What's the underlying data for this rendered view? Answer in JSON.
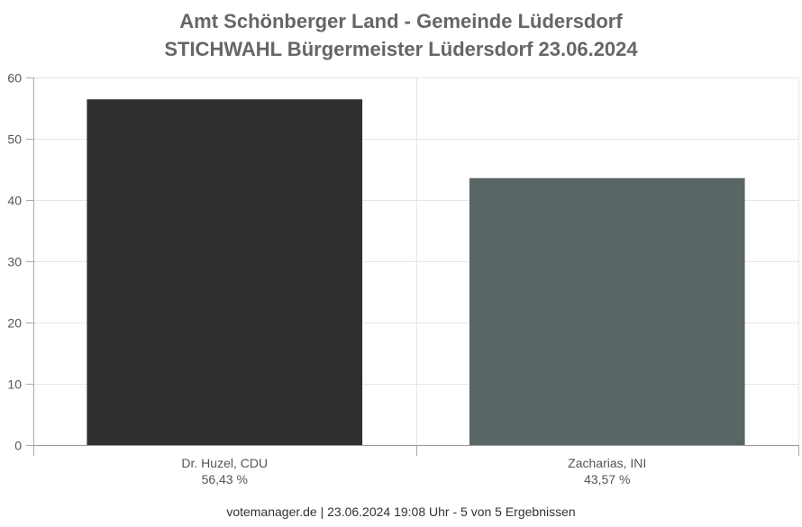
{
  "chart_data": {
    "type": "bar",
    "title_line1": "Amt Schönberger Land - Gemeinde Lüdersdorf",
    "title_line2": "STICHWAHL Bürgermeister Lüdersdorf 23.06.2024",
    "categories": [
      "Dr. Huzel, CDU",
      "Zacharias, INI"
    ],
    "value_labels": [
      "56,43 %",
      "43,57 %"
    ],
    "values": [
      56.43,
      43.57
    ],
    "colors": [
      "#32302e",
      "#5a6665"
    ],
    "ylim": [
      0,
      60
    ],
    "yticks": [
      0,
      10,
      20,
      30,
      40,
      50,
      60
    ],
    "grid": true
  },
  "footer": "votemanager.de | 23.06.2024 19:08 Uhr - 5 von 5 Ergebnissen"
}
